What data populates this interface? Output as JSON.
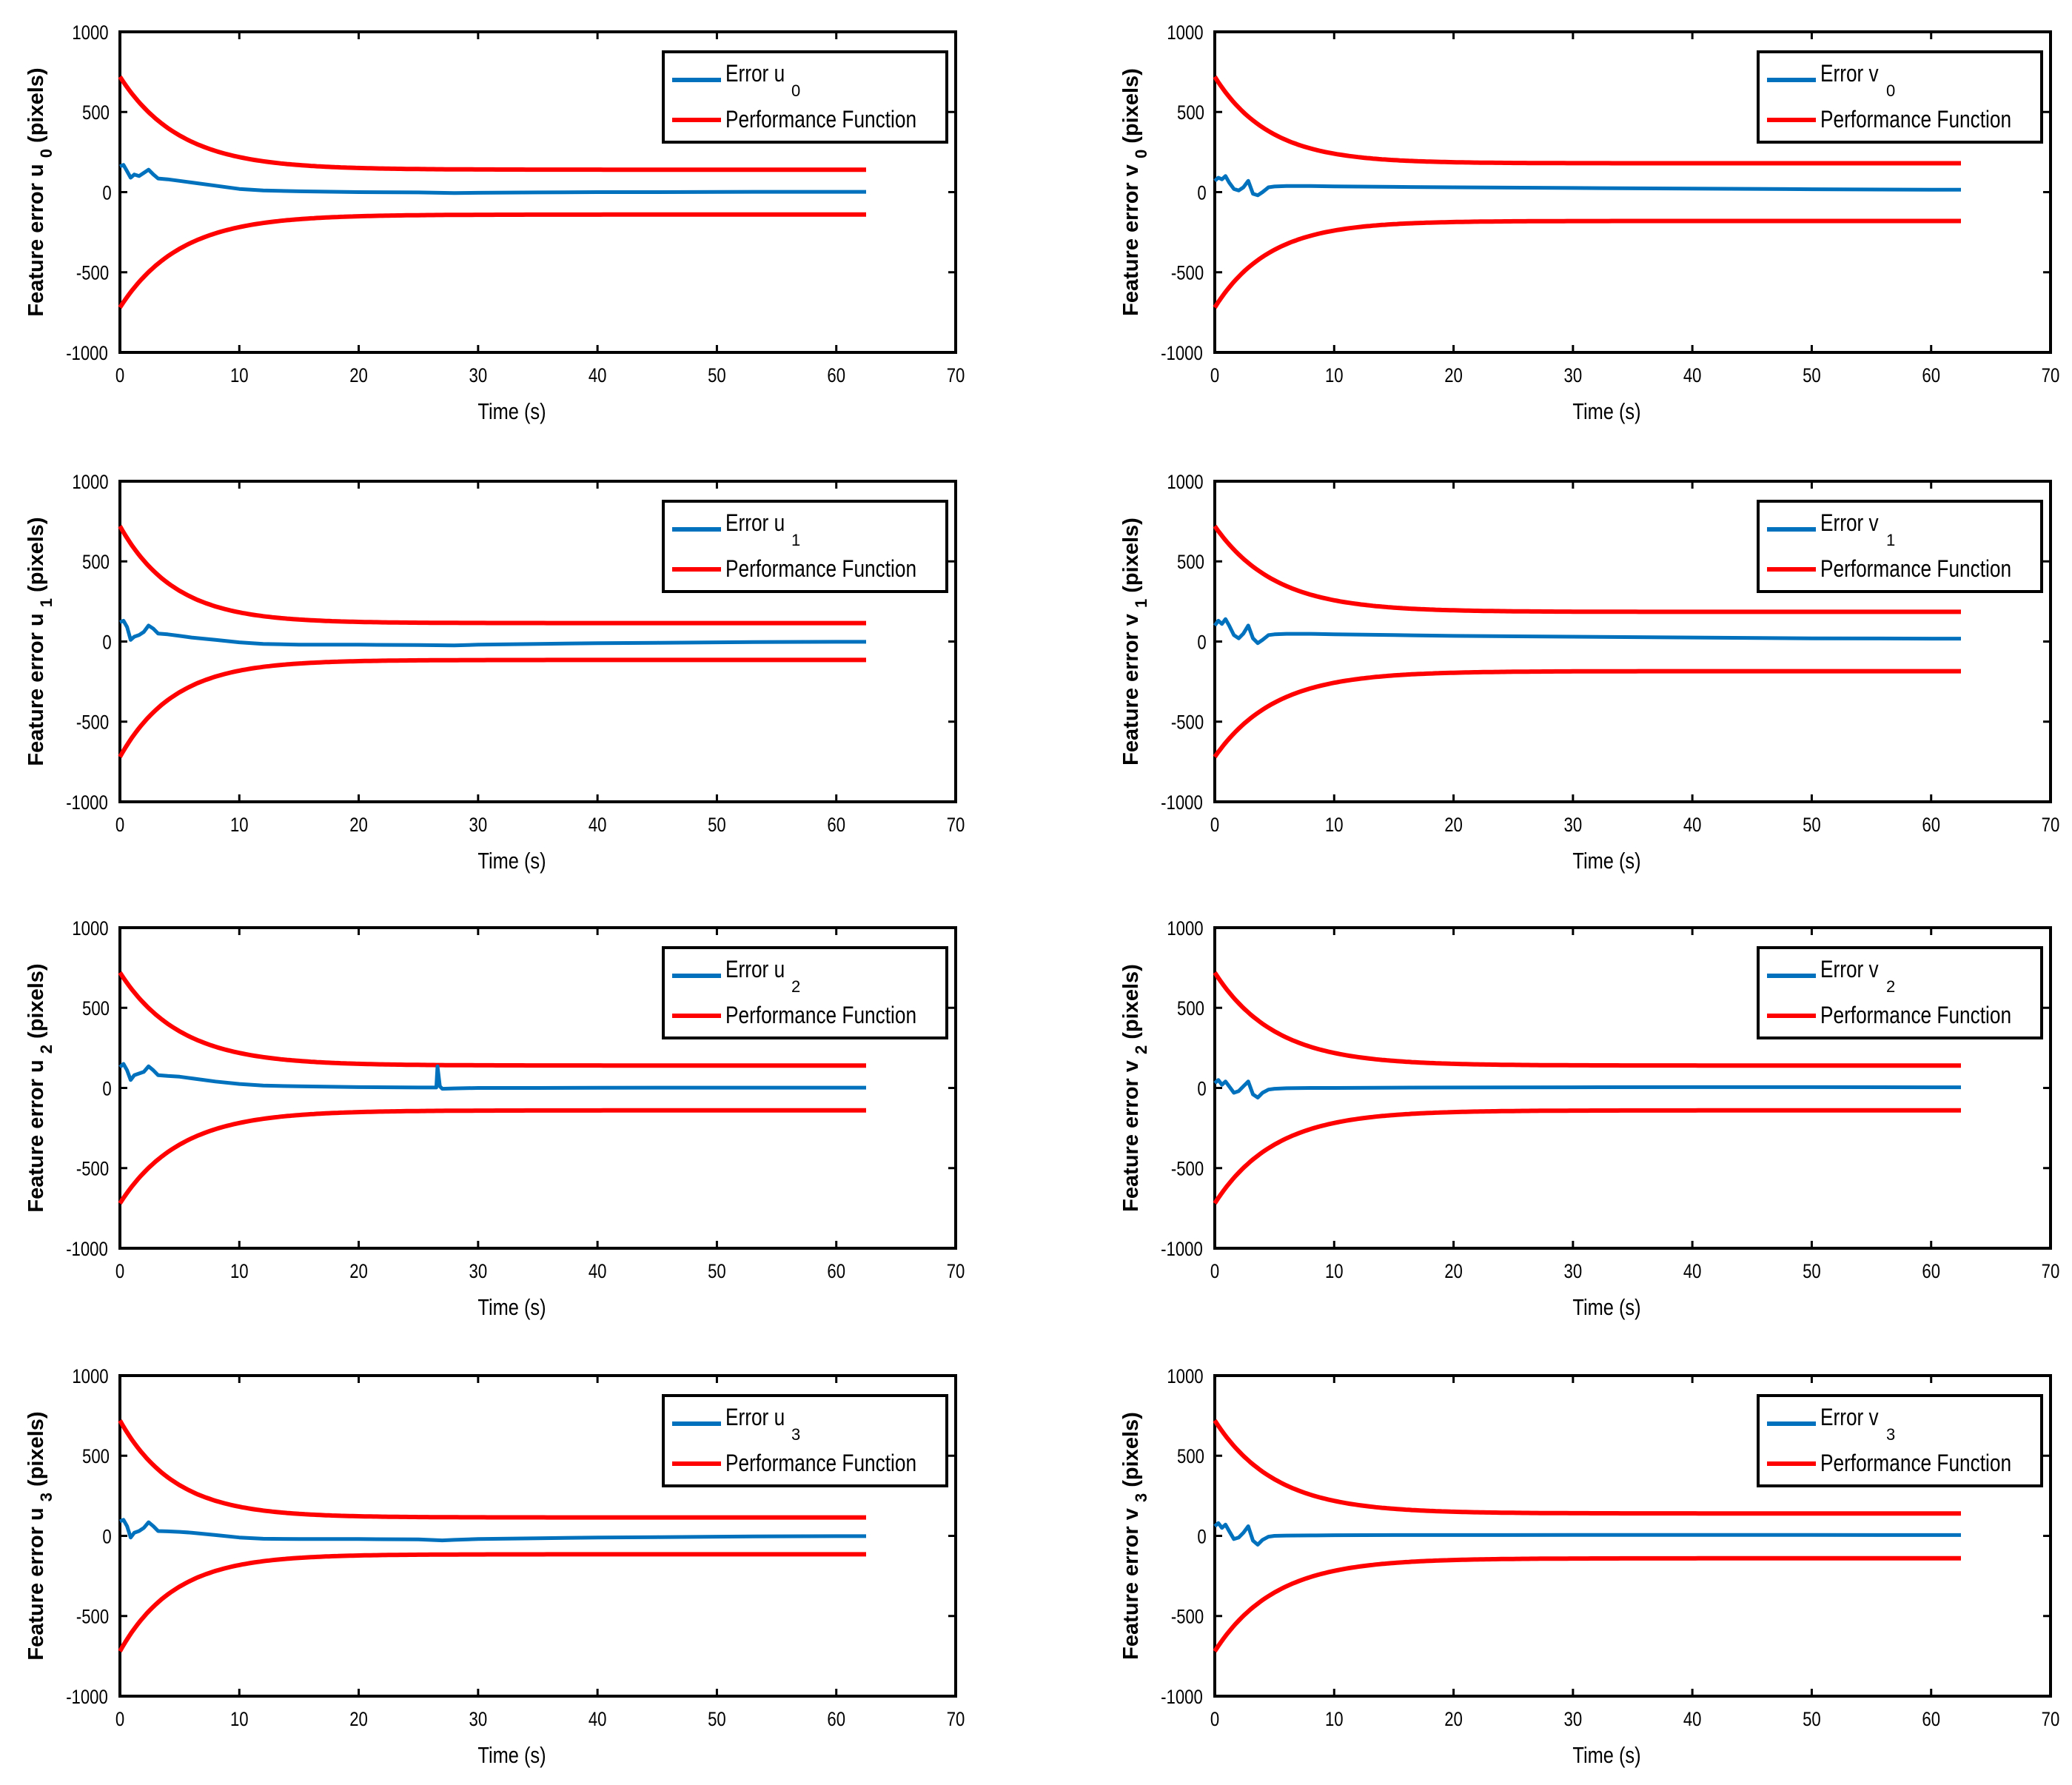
{
  "figure": {
    "x_ticks": [
      "0",
      "10",
      "20",
      "30",
      "40",
      "50",
      "60",
      "70"
    ],
    "y_ticks": [
      "1000",
      "500",
      "0",
      "-500",
      "-1000"
    ],
    "xlabel": "Time (s)",
    "ylabel_prefix": "Feature error ",
    "ylabel_suffix": "(pixels)",
    "perf_label": "Performance Function",
    "error_label_prefix": "Error ",
    "colors": {
      "error": "#0072BD",
      "performance": "#FF0000",
      "axes": "#000000"
    }
  },
  "chart_data": [
    {
      "type": "line",
      "title": "",
      "axis_var": "u",
      "subscript": "0",
      "xlabel": "Time (s)",
      "ylabel": "Feature error u 0 (pixels)",
      "xlim": [
        0,
        70
      ],
      "ylim": [
        -1000,
        1000
      ],
      "legend": [
        "Error u 0",
        "Performance Function"
      ],
      "legend_position": "top-right",
      "perf_bounds": {
        "rho0": 720,
        "rho_inf": 140,
        "decay": 0.2,
        "t_end": 62.5
      },
      "error_series": {
        "name": "Error u 0",
        "x": [
          0,
          0.3,
          0.6,
          0.9,
          1.2,
          1.6,
          2.0,
          2.4,
          2.8,
          3.2,
          4,
          5,
          6,
          8,
          10,
          12,
          15,
          20,
          25,
          28,
          30,
          35,
          40,
          45,
          50,
          55,
          60,
          62.5
        ],
        "y": [
          160,
          170,
          130,
          90,
          110,
          100,
          120,
          140,
          110,
          85,
          80,
          70,
          60,
          40,
          20,
          10,
          5,
          0,
          -2,
          -6,
          -4,
          -2,
          0,
          0,
          1,
          2,
          2,
          2
        ]
      }
    },
    {
      "type": "line",
      "title": "",
      "axis_var": "v",
      "subscript": "0",
      "xlabel": "Time (s)",
      "ylabel": "Feature error v 0 (pixels)",
      "xlim": [
        0,
        70
      ],
      "ylim": [
        -1000,
        1000
      ],
      "legend": [
        "Error v 0",
        "Performance Function"
      ],
      "legend_position": "top-right",
      "perf_bounds": {
        "rho0": 720,
        "rho_inf": 180,
        "decay": 0.22,
        "t_end": 62.5
      },
      "error_series": {
        "name": "Error v 0",
        "x": [
          0,
          0.3,
          0.6,
          0.9,
          1.2,
          1.6,
          2.0,
          2.4,
          2.8,
          3.2,
          3.6,
          4,
          4.5,
          5,
          6,
          8,
          10,
          15,
          20,
          30,
          40,
          50,
          60,
          62.5
        ],
        "y": [
          70,
          90,
          80,
          100,
          60,
          20,
          10,
          30,
          70,
          -10,
          -20,
          0,
          30,
          35,
          38,
          38,
          36,
          33,
          30,
          26,
          22,
          18,
          15,
          15
        ]
      }
    },
    {
      "type": "line",
      "title": "",
      "axis_var": "u",
      "subscript": "1",
      "xlabel": "Time (s)",
      "ylabel": "Feature error u 1 (pixels)",
      "xlim": [
        0,
        70
      ],
      "ylim": [
        -1000,
        1000
      ],
      "legend": [
        "Error u 1",
        "Performance Function"
      ],
      "legend_position": "top-right",
      "perf_bounds": {
        "rho0": 720,
        "rho_inf": 115,
        "decay": 0.22,
        "t_end": 62.5
      },
      "error_series": {
        "name": "Error u 1",
        "x": [
          0,
          0.3,
          0.6,
          0.9,
          1.2,
          1.6,
          2.0,
          2.4,
          2.8,
          3.2,
          4,
          5,
          6,
          8,
          10,
          12,
          15,
          20,
          25,
          28,
          30,
          35,
          40,
          45,
          50,
          55,
          60,
          62.5
        ],
        "y": [
          120,
          130,
          90,
          10,
          30,
          40,
          60,
          100,
          80,
          50,
          45,
          35,
          25,
          10,
          -5,
          -15,
          -20,
          -20,
          -22,
          -24,
          -20,
          -15,
          -10,
          -8,
          -5,
          -3,
          -2,
          -2
        ]
      }
    },
    {
      "type": "line",
      "title": "",
      "axis_var": "v",
      "subscript": "1",
      "xlabel": "Time (s)",
      "ylabel": "Feature error v 1 (pixels)",
      "xlim": [
        0,
        70
      ],
      "ylim": [
        -1000,
        1000
      ],
      "legend": [
        "Error v 1",
        "Performance Function"
      ],
      "legend_position": "top-right",
      "perf_bounds": {
        "rho0": 720,
        "rho_inf": 185,
        "decay": 0.2,
        "t_end": 62.5
      },
      "error_series": {
        "name": "Error v 1",
        "x": [
          0,
          0.3,
          0.6,
          0.9,
          1.2,
          1.6,
          2.0,
          2.4,
          2.8,
          3.2,
          3.6,
          4,
          4.5,
          5,
          6,
          8,
          10,
          15,
          20,
          30,
          40,
          50,
          60,
          62.5
        ],
        "y": [
          100,
          130,
          110,
          140,
          100,
          40,
          20,
          50,
          100,
          20,
          -10,
          10,
          40,
          45,
          48,
          48,
          45,
          40,
          35,
          30,
          25,
          20,
          18,
          18
        ]
      }
    },
    {
      "type": "line",
      "title": "",
      "axis_var": "u",
      "subscript": "2",
      "xlabel": "Time (s)",
      "ylabel": "Feature error u 2 (pixels)",
      "xlim": [
        0,
        70
      ],
      "ylim": [
        -1000,
        1000
      ],
      "legend": [
        "Error u 2",
        "Performance Function"
      ],
      "legend_position": "top-right",
      "perf_bounds": {
        "rho0": 720,
        "rho_inf": 140,
        "decay": 0.2,
        "t_end": 62.5
      },
      "error_series": {
        "name": "Error u 2",
        "x": [
          0,
          0.3,
          0.6,
          0.9,
          1.2,
          1.6,
          2.0,
          2.4,
          2.8,
          3.2,
          4,
          5,
          6,
          8,
          10,
          12,
          15,
          20,
          25,
          26.5,
          26.6,
          26.8,
          27,
          28,
          30,
          35,
          40,
          45,
          50,
          55,
          60,
          62.5
        ],
        "y": [
          130,
          150,
          110,
          50,
          80,
          90,
          100,
          135,
          110,
          80,
          75,
          70,
          60,
          40,
          25,
          15,
          10,
          5,
          3,
          3,
          135,
          10,
          -5,
          -3,
          0,
          0,
          1,
          2,
          2,
          2,
          2,
          2
        ]
      }
    },
    {
      "type": "line",
      "title": "",
      "axis_var": "v",
      "subscript": "2",
      "xlabel": "Time (s)",
      "ylabel": "Feature error v 2 (pixels)",
      "xlim": [
        0,
        70
      ],
      "ylim": [
        -1000,
        1000
      ],
      "legend": [
        "Error v 2",
        "Performance Function"
      ],
      "legend_position": "top-right",
      "perf_bounds": {
        "rho0": 720,
        "rho_inf": 140,
        "decay": 0.2,
        "t_end": 62.5
      },
      "error_series": {
        "name": "Error v 2",
        "x": [
          0,
          0.3,
          0.6,
          0.9,
          1.2,
          1.6,
          2.0,
          2.4,
          2.8,
          3.2,
          3.6,
          4,
          4.5,
          5,
          6,
          8,
          10,
          15,
          20,
          30,
          40,
          50,
          60,
          62.5
        ],
        "y": [
          30,
          50,
          20,
          40,
          10,
          -30,
          -20,
          10,
          40,
          -40,
          -60,
          -30,
          -10,
          -5,
          -2,
          0,
          0,
          2,
          3,
          4,
          5,
          5,
          4,
          4
        ]
      }
    },
    {
      "type": "line",
      "title": "",
      "axis_var": "u",
      "subscript": "3",
      "xlabel": "Time (s)",
      "ylabel": "Feature error u 3 (pixels)",
      "xlim": [
        0,
        70
      ],
      "ylim": [
        -1000,
        1000
      ],
      "legend": [
        "Error u 3",
        "Performance Function"
      ],
      "legend_position": "top-right",
      "perf_bounds": {
        "rho0": 720,
        "rho_inf": 115,
        "decay": 0.22,
        "t_end": 62.5
      },
      "error_series": {
        "name": "Error u 3",
        "x": [
          0,
          0.3,
          0.6,
          0.9,
          1.2,
          1.6,
          2.0,
          2.4,
          2.8,
          3.2,
          4,
          5,
          6,
          8,
          10,
          12,
          15,
          20,
          25,
          27,
          28,
          30,
          35,
          40,
          45,
          50,
          55,
          60,
          62.5
        ],
        "y": [
          90,
          100,
          60,
          -10,
          20,
          30,
          50,
          85,
          60,
          30,
          28,
          25,
          20,
          5,
          -10,
          -18,
          -20,
          -20,
          -22,
          -28,
          -25,
          -20,
          -15,
          -10,
          -8,
          -5,
          -3,
          -2,
          -2
        ]
      }
    },
    {
      "type": "line",
      "title": "",
      "axis_var": "v",
      "subscript": "3",
      "xlabel": "Time (s)",
      "ylabel": "Feature error v 3 (pixels)",
      "xlim": [
        0,
        70
      ],
      "ylim": [
        -1000,
        1000
      ],
      "legend": [
        "Error v 3",
        "Performance Function"
      ],
      "legend_position": "top-right",
      "perf_bounds": {
        "rho0": 720,
        "rho_inf": 140,
        "decay": 0.2,
        "t_end": 62.5
      },
      "error_series": {
        "name": "Error v 3",
        "x": [
          0,
          0.3,
          0.6,
          0.9,
          1.2,
          1.6,
          2.0,
          2.4,
          2.8,
          3.2,
          3.6,
          4,
          4.5,
          5,
          6,
          8,
          10,
          15,
          20,
          30,
          40,
          50,
          60,
          62.5
        ],
        "y": [
          60,
          80,
          50,
          70,
          30,
          -20,
          -10,
          20,
          60,
          -30,
          -55,
          -25,
          -5,
          0,
          2,
          3,
          4,
          5,
          5,
          6,
          6,
          6,
          5,
          5
        ]
      }
    }
  ]
}
